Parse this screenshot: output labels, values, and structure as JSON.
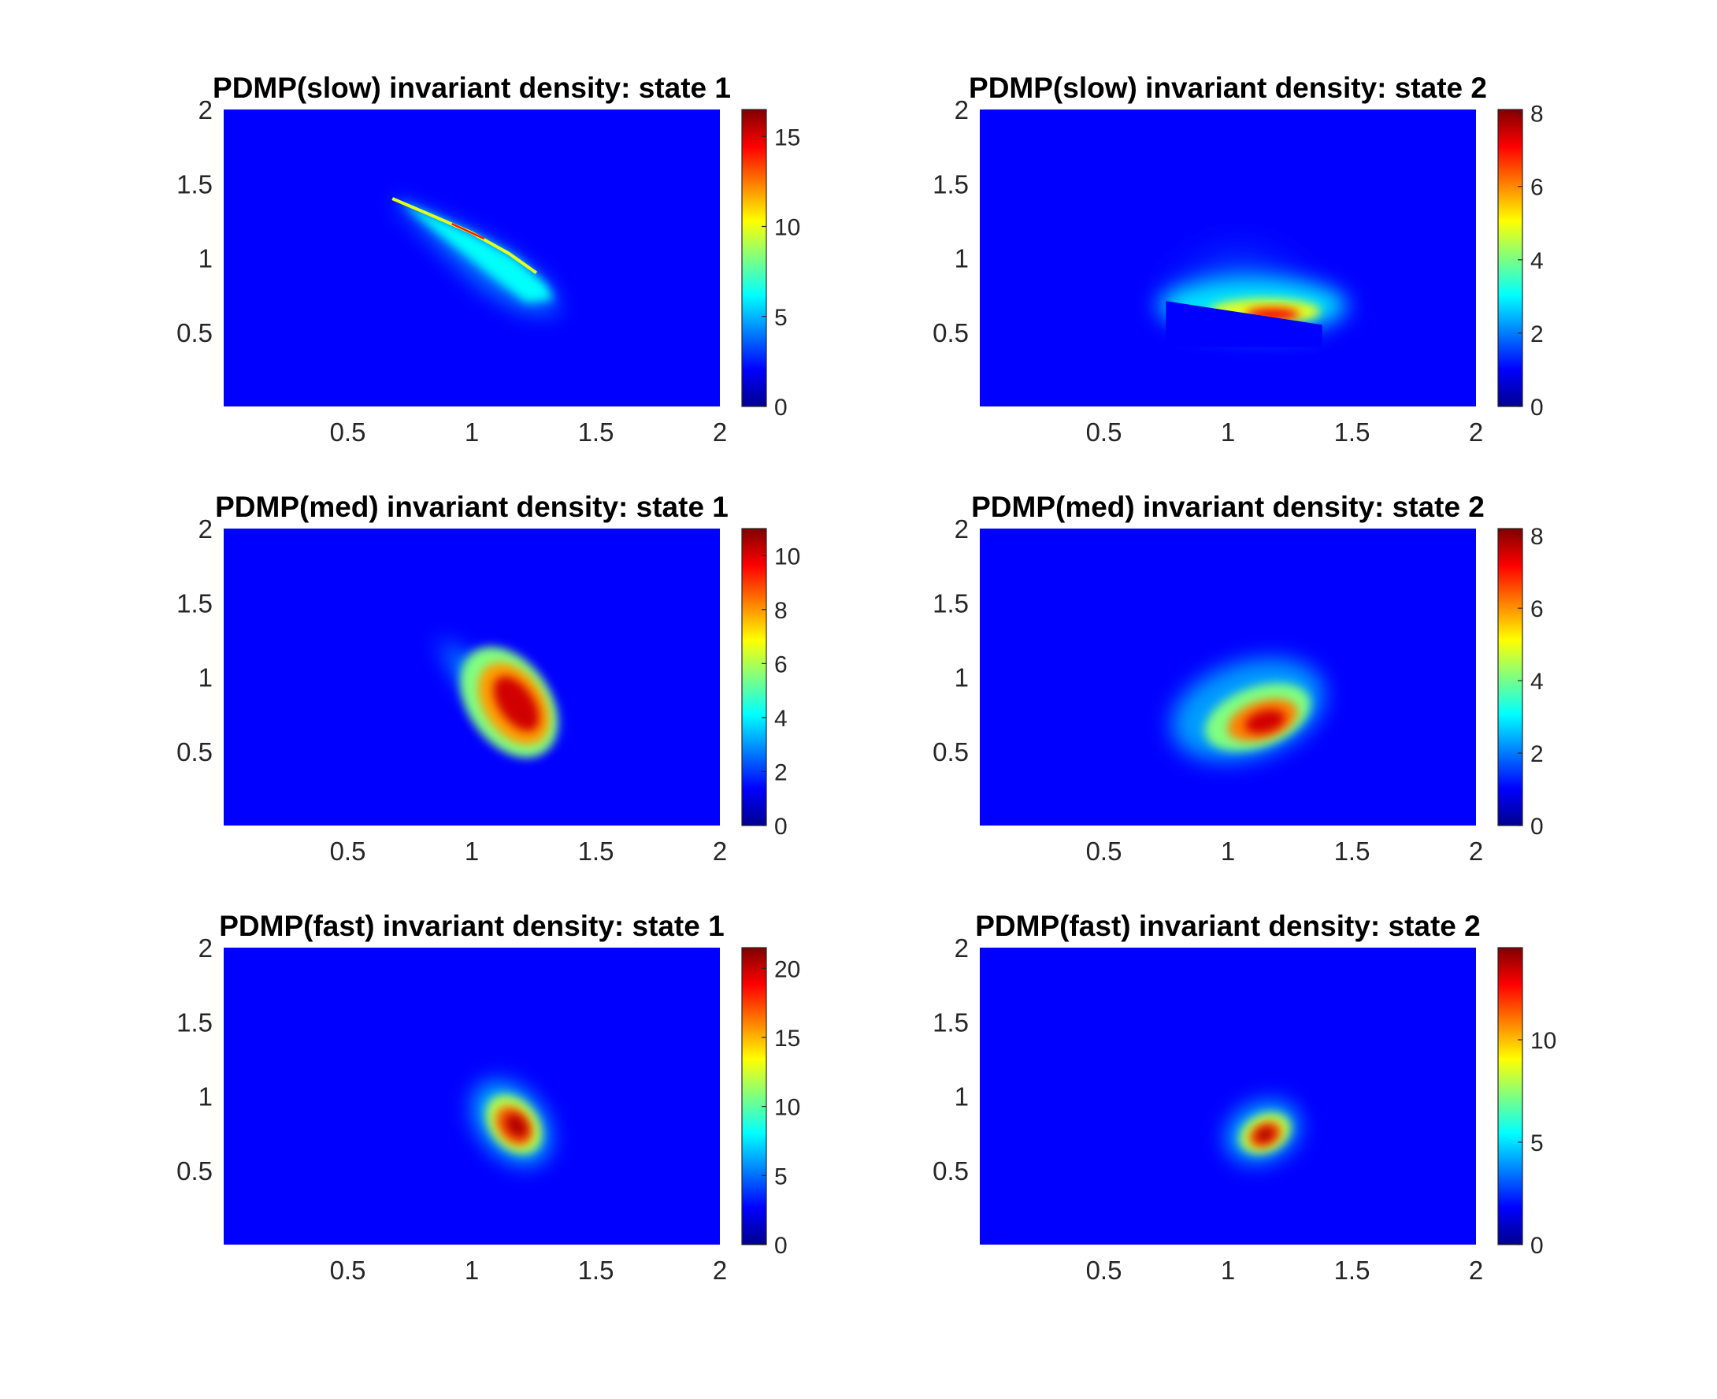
{
  "colormap": "jet",
  "chart_data": [
    {
      "type": "heatmap",
      "title": "PDMP(slow) invariant density: state 1",
      "xlim": [
        0,
        2
      ],
      "ylim": [
        0,
        2
      ],
      "xticks": [
        0.5,
        1,
        1.5,
        2
      ],
      "xtick_labels": [
        "0.5",
        "1",
        "1.5",
        "2"
      ],
      "yticks": [
        0.5,
        1,
        1.5,
        2
      ],
      "ytick_labels": [
        "0.5",
        "1",
        "1.5",
        "2"
      ],
      "clim": [
        0,
        16.5
      ],
      "cbar_ticks": [
        0,
        5,
        10,
        15
      ],
      "cbar_tick_labels": [
        "0",
        "5",
        "10",
        "15"
      ],
      "peak_location": [
        1.0,
        1.1
      ],
      "peak_value": 16.5,
      "support": "thin curved ridge from (0.68, 1.4) to (1.35, 0.65)"
    },
    {
      "type": "heatmap",
      "title": "PDMP(slow) invariant density: state 2",
      "xlim": [
        0,
        2
      ],
      "ylim": [
        0,
        2
      ],
      "xticks": [
        0.5,
        1,
        1.5,
        2
      ],
      "xtick_labels": [
        "0.5",
        "1",
        "1.5",
        "2"
      ],
      "yticks": [
        0.5,
        1,
        1.5,
        2
      ],
      "ytick_labels": [
        "0.5",
        "1",
        "1.5",
        "2"
      ],
      "clim": [
        0,
        8.1
      ],
      "cbar_ticks": [
        0,
        2,
        4,
        6,
        8
      ],
      "cbar_tick_labels": [
        "0",
        "2",
        "4",
        "6",
        "8"
      ],
      "peak_location": [
        1.18,
        0.62
      ],
      "peak_value": 8.1,
      "support": "wedge above line from (0.75, 0.72) to (1.38, 0.55)"
    },
    {
      "type": "heatmap",
      "title": "PDMP(med) invariant density: state 1",
      "xlim": [
        0,
        2
      ],
      "ylim": [
        0,
        2
      ],
      "xticks": [
        0.5,
        1,
        1.5,
        2
      ],
      "xtick_labels": [
        "0.5",
        "1",
        "1.5",
        "2"
      ],
      "yticks": [
        0.5,
        1,
        1.5,
        2
      ],
      "ytick_labels": [
        "0.5",
        "1",
        "1.5",
        "2"
      ],
      "clim": [
        0,
        11
      ],
      "cbar_ticks": [
        0,
        2,
        4,
        6,
        8,
        10
      ],
      "cbar_tick_labels": [
        "0",
        "2",
        "4",
        "6",
        "8",
        "10"
      ],
      "peak_location": [
        1.18,
        0.82
      ],
      "peak_value": 11,
      "support": "elongated blob from (0.87, 1.25) to (1.33, 0.62)"
    },
    {
      "type": "heatmap",
      "title": "PDMP(med) invariant density: state 2",
      "xlim": [
        0,
        2
      ],
      "ylim": [
        0,
        2
      ],
      "xticks": [
        0.5,
        1,
        1.5,
        2
      ],
      "xtick_labels": [
        "0.5",
        "1",
        "1.5",
        "2"
      ],
      "yticks": [
        0.5,
        1,
        1.5,
        2
      ],
      "ytick_labels": [
        "0.5",
        "1",
        "1.5",
        "2"
      ],
      "clim": [
        0,
        8.2
      ],
      "cbar_ticks": [
        0,
        2,
        4,
        6,
        8
      ],
      "cbar_tick_labels": [
        "0",
        "2",
        "4",
        "6",
        "8"
      ],
      "peak_location": [
        1.15,
        0.7
      ],
      "peak_value": 8.2,
      "support": "oval blob centred near (1.12, 0.75)"
    },
    {
      "type": "heatmap",
      "title": "PDMP(fast) invariant density: state 1",
      "xlim": [
        0,
        2
      ],
      "ylim": [
        0,
        2
      ],
      "xticks": [
        0.5,
        1,
        1.5,
        2
      ],
      "xtick_labels": [
        "0.5",
        "1",
        "1.5",
        "2"
      ],
      "yticks": [
        0.5,
        1,
        1.5,
        2
      ],
      "ytick_labels": [
        "0.5",
        "1",
        "1.5",
        "2"
      ],
      "clim": [
        0,
        21.5
      ],
      "cbar_ticks": [
        0,
        5,
        10,
        15,
        20
      ],
      "cbar_tick_labels": [
        "0",
        "5",
        "10",
        "15",
        "20"
      ],
      "peak_location": [
        1.18,
        0.8
      ],
      "peak_value": 21.5,
      "support": "small compact blob centred near (1.17, 0.8)"
    },
    {
      "type": "heatmap",
      "title": "PDMP(fast) invariant density: state 2",
      "xlim": [
        0,
        2
      ],
      "ylim": [
        0,
        2
      ],
      "xticks": [
        0.5,
        1,
        1.5,
        2
      ],
      "xtick_labels": [
        "0.5",
        "1",
        "1.5",
        "2"
      ],
      "yticks": [
        0.5,
        1,
        1.5,
        2
      ],
      "ytick_labels": [
        "0.5",
        "1",
        "1.5",
        "2"
      ],
      "clim": [
        0,
        14.5
      ],
      "cbar_ticks": [
        0,
        5,
        10
      ],
      "cbar_tick_labels": [
        "0",
        "5",
        "10"
      ],
      "peak_location": [
        1.15,
        0.74
      ],
      "peak_value": 14.5,
      "support": "small compact blob centred near (1.15, 0.75)"
    }
  ]
}
